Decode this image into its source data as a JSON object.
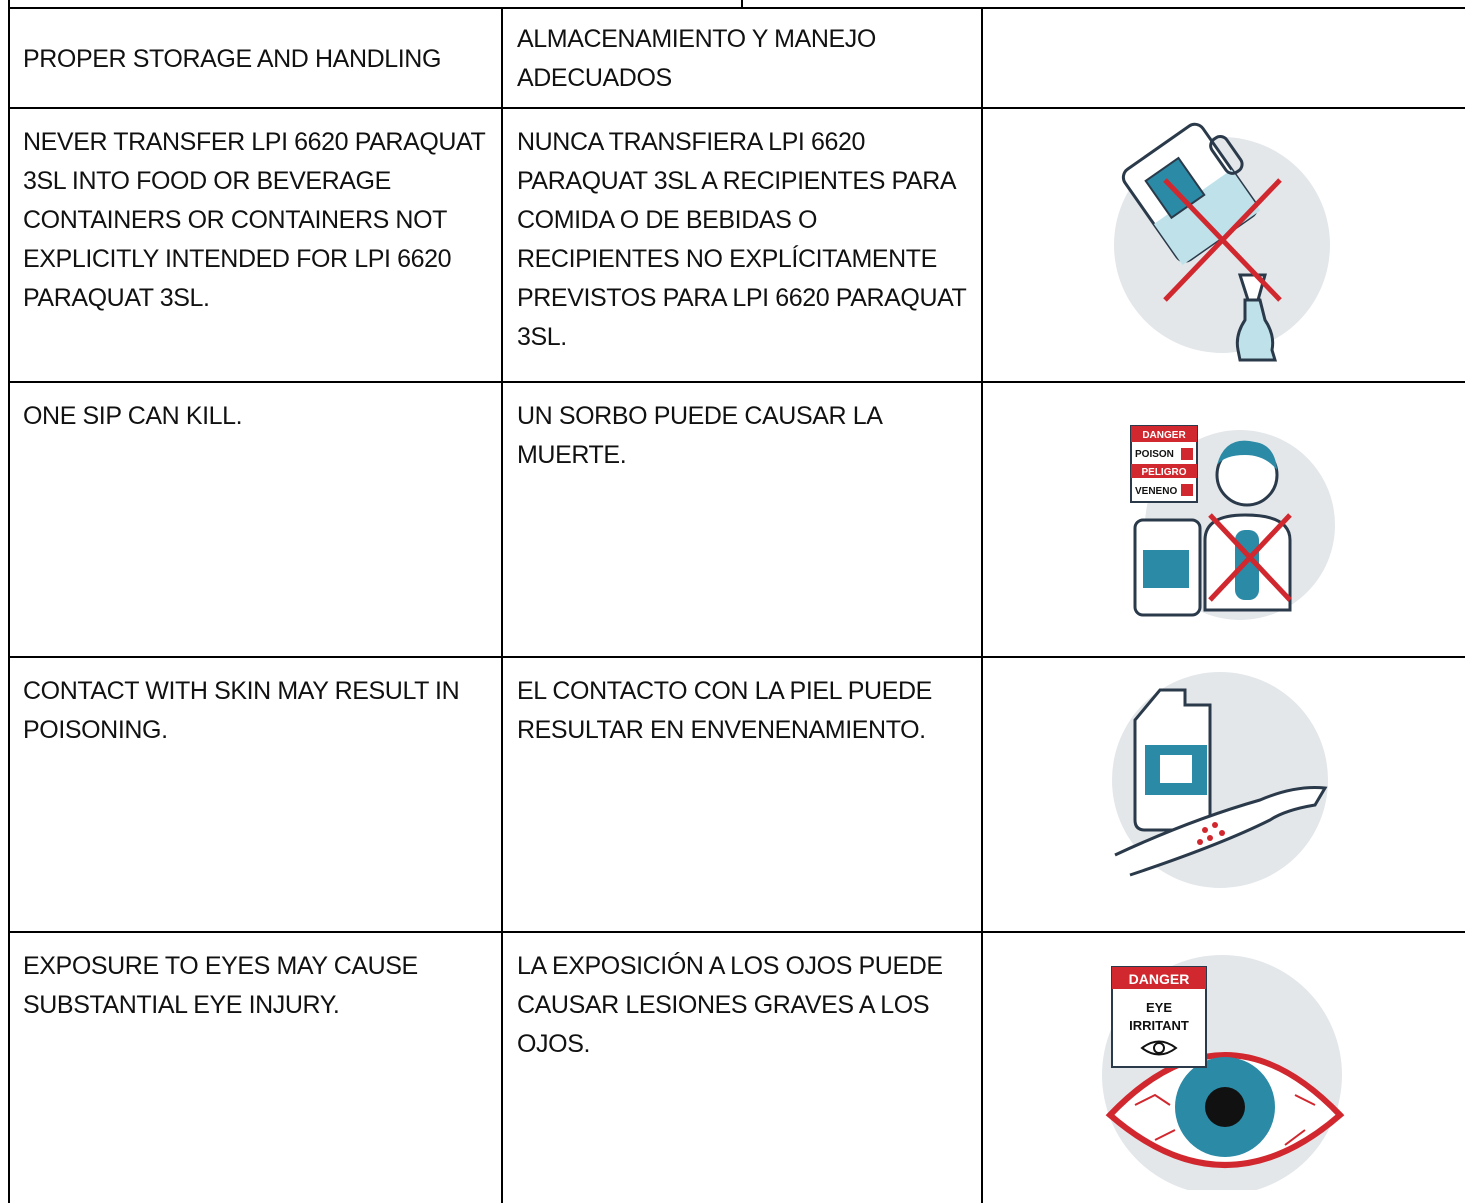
{
  "table": {
    "header": [
      "PROPER STORAGE AND HANDLING",
      "ALMACENAMIENTO Y MANEJO ADECUADOS"
    ],
    "rows": [
      {
        "en": "NEVER TRANSFER LPI 6620 PARAQUAT 3SL INTO FOOD OR BEVERAGE CONTAINERS OR CONTAINERS NOT EXPLICITLY INTENDED FOR LPI 6620 PARAQUAT 3SL.",
        "es": "NUNCA TRANSFIERA LPI 6620 PARAQUAT 3SL A RECIPIENTES PARA COMIDA O DE BEBIDAS O RECIPIENTES NO EXPLÍCITAMENTE PREVISTOS PARA LPI 6620 PARAQUAT 3SL."
      },
      {
        "en": "ONE SIP CAN KILL.",
        "es": "UN SORBO PUEDE CAUSAR LA MUERTE.",
        "icon_labels": [
          "DANGER",
          "POISON",
          "PELIGRO",
          "VENENO"
        ]
      },
      {
        "en": "CONTACT WITH SKIN MAY RESULT IN POISONING.",
        "es": "EL CONTACTO CON LA PIEL PUEDE RESULTAR EN ENVENENAMIENTO."
      },
      {
        "en": "EXPOSURE TO EYES MAY CAUSE SUBSTANTIAL EYE INJURY.",
        "es": "LA EXPOSICIÓN A LOS OJOS PUEDE CAUSAR LESIONES GRAVES A LOS OJOS.",
        "icon_labels": [
          "DANGER",
          "EYE",
          "IRRITANT"
        ]
      }
    ]
  }
}
